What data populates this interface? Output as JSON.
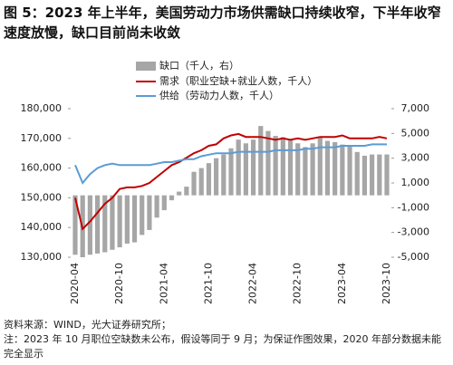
{
  "chart_data": {
    "type": "bar_line",
    "title": "图 5：2023 年上半年，美国劳动力市场供需缺口持续收窄，下半年收窄速度放慢，缺口目前尚未收敛",
    "categories": [
      "2020-04",
      null,
      null,
      null,
      null,
      null,
      "2020-10",
      null,
      null,
      null,
      null,
      null,
      "2021-04",
      null,
      null,
      null,
      null,
      null,
      "2021-10",
      null,
      null,
      null,
      null,
      null,
      "2022-04",
      null,
      null,
      null,
      null,
      null,
      "2022-10",
      null,
      null,
      null,
      null,
      null,
      "2023-04",
      null,
      null,
      null,
      null,
      null,
      "2023-10"
    ],
    "series": [
      {
        "name": "缺口（千人，右）",
        "color": "#a6a6a6",
        "axis": "y2",
        "kind": "bar",
        "values": [
          -4800,
          -5000,
          -4800,
          -4700,
          -4600,
          -4400,
          -4200,
          -3900,
          -3800,
          -3200,
          -2800,
          -1800,
          -1200,
          -400,
          300,
          700,
          1900,
          2200,
          2600,
          3000,
          3300,
          3800,
          4500,
          4200,
          4500,
          5600,
          5200,
          4800,
          4700,
          4500,
          4200,
          3900,
          4200,
          4700,
          4400,
          4300,
          4100,
          4000,
          3500,
          3200,
          3300,
          3300,
          3300
        ]
      },
      {
        "name": "需求（职业空缺+就业人数，千人）",
        "color": "#c00000",
        "kind": "line",
        "values": [
          150000,
          139500,
          142000,
          145000,
          148000,
          150000,
          153000,
          153500,
          153500,
          154000,
          155000,
          157000,
          159000,
          161000,
          162000,
          163500,
          165000,
          166000,
          167500,
          168000,
          170000,
          171000,
          171500,
          170500,
          170500,
          170500,
          170000,
          169500,
          170000,
          169500,
          170000,
          169500,
          170000,
          170500,
          170500,
          170500,
          171000,
          170000,
          170000,
          170000,
          170000,
          170500,
          170000
        ]
      },
      {
        "name": "供给（劳动力人数，千人）",
        "color": "#5b9bd5",
        "kind": "line",
        "values": [
          161000,
          155000,
          158000,
          160000,
          161000,
          161500,
          161000,
          161000,
          161000,
          161000,
          161000,
          161500,
          162000,
          162000,
          162500,
          163000,
          163000,
          164000,
          164500,
          165000,
          165000,
          165000,
          165500,
          165500,
          165500,
          165500,
          165500,
          166000,
          166000,
          166000,
          166000,
          166500,
          166500,
          167000,
          167000,
          167000,
          167500,
          167500,
          167500,
          167500,
          168000,
          168000,
          168000
        ]
      }
    ],
    "ylim": [
      130000,
      180000
    ],
    "yticks": [
      {
        "value": 130000,
        "label": "130,000"
      },
      {
        "value": 140000,
        "label": "140,000"
      },
      {
        "value": 150000,
        "label": "150,000"
      },
      {
        "value": 160000,
        "label": "160,000"
      },
      {
        "value": 170000,
        "label": "170,000"
      },
      {
        "value": 180000,
        "label": "180,000"
      }
    ],
    "y2lim": [
      -5000,
      7000
    ],
    "y2ticks": [
      {
        "value": -5000,
        "label": "-5,000"
      },
      {
        "value": -3000,
        "label": "-3,000"
      },
      {
        "value": -1000,
        "label": "-1,000"
      },
      {
        "value": 1000,
        "label": "1,000"
      },
      {
        "value": 3000,
        "label": "3,000"
      },
      {
        "value": 5000,
        "label": "5,000"
      },
      {
        "value": 7000,
        "label": "7,000"
      }
    ]
  },
  "notes": [
    "资料来源：WIND，光大证券研究所；",
    "注：2023 年 10 月职位空缺数未公布，假设等同于 9 月；为保证作图效果，2020 年部分数据未能完全显示"
  ]
}
